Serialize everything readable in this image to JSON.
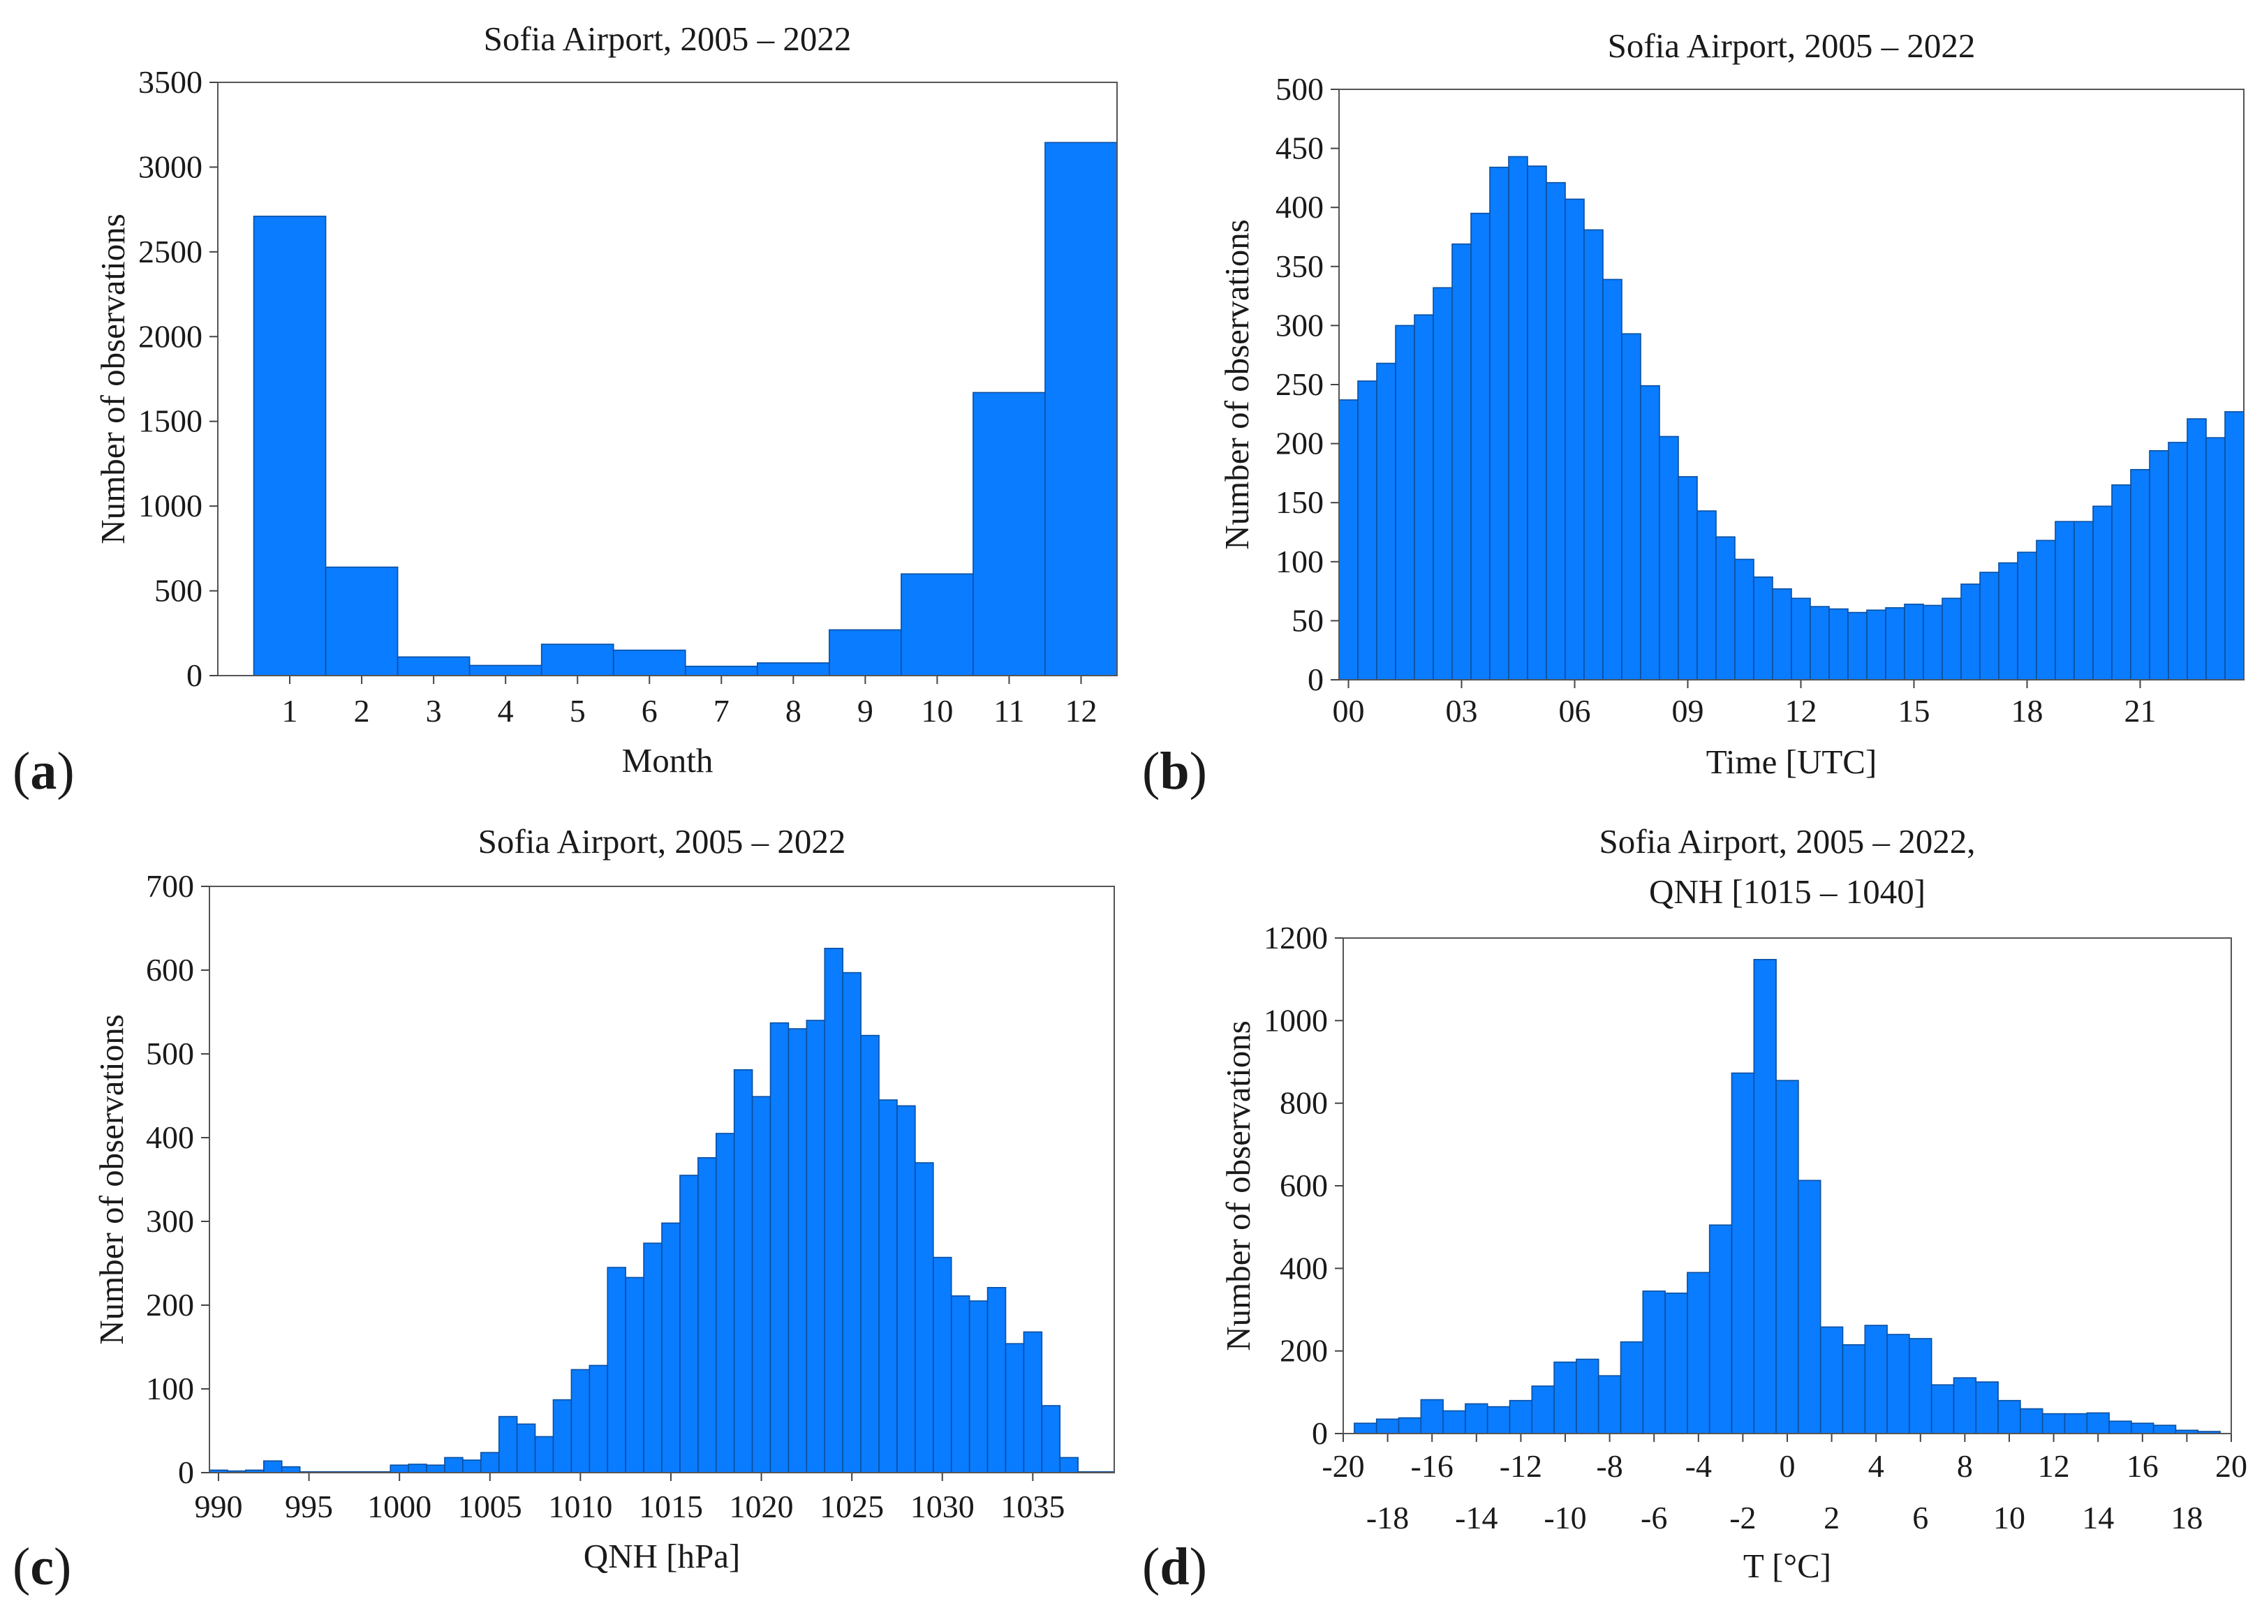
{
  "colors": {
    "bar": "#0a7cff",
    "bar_edge": "#0a4fa0",
    "frame": "#555555",
    "text": "#1a1a1a"
  },
  "chart_data": [
    {
      "id": "a",
      "type": "bar",
      "panel_label": "a",
      "title": [
        "Sofia Airport, 2005 – 2022"
      ],
      "xlabel": "Month",
      "ylabel": "Number of observations",
      "ylim": [
        0,
        3500
      ],
      "yticks": [
        0,
        500,
        1000,
        1500,
        2000,
        2500,
        3000,
        3500
      ],
      "categories": [
        "1",
        "2",
        "3",
        "4",
        "5",
        "6",
        "7",
        "8",
        "9",
        "10",
        "11",
        "12"
      ],
      "values": [
        2710,
        640,
        110,
        60,
        185,
        150,
        55,
        75,
        270,
        600,
        1670,
        3145
      ]
    },
    {
      "id": "b",
      "type": "bar",
      "panel_label": "b",
      "title": [
        "Sofia Airport, 2005 – 2022"
      ],
      "xlabel": "Time [UTC]",
      "ylabel": "Number of observations",
      "ylim": [
        0,
        500
      ],
      "yticks": [
        0,
        50,
        100,
        150,
        200,
        250,
        300,
        350,
        400,
        450,
        500
      ],
      "xlim": [
        -0.25,
        23.75
      ],
      "bin_width": 0.5,
      "bin_start": -0.25,
      "xticks": [
        {
          "value": 0,
          "label": "00"
        },
        {
          "value": 3,
          "label": "03"
        },
        {
          "value": 6,
          "label": "06"
        },
        {
          "value": 9,
          "label": "09"
        },
        {
          "value": 12,
          "label": "12"
        },
        {
          "value": 15,
          "label": "15"
        },
        {
          "value": 18,
          "label": "18"
        },
        {
          "value": 21,
          "label": "21"
        }
      ],
      "values": [
        237,
        253,
        268,
        300,
        309,
        332,
        369,
        395,
        434,
        443,
        435,
        421,
        407,
        381,
        339,
        293,
        249,
        206,
        172,
        143,
        121,
        102,
        87,
        77,
        69,
        62,
        60,
        57,
        59,
        61,
        64,
        63,
        69,
        81,
        91,
        99,
        108,
        118,
        134,
        134,
        147,
        165,
        178,
        194,
        201,
        221,
        205,
        227
      ]
    },
    {
      "id": "c",
      "type": "bar",
      "panel_label": "c",
      "title": [
        "Sofia Airport, 2005 – 2022"
      ],
      "xlabel": "QNH [hPa]",
      "ylabel": "Number of observations",
      "ylim": [
        0,
        700
      ],
      "yticks": [
        0,
        100,
        200,
        300,
        400,
        500,
        600,
        700
      ],
      "xlim": [
        989.5,
        1039.5
      ],
      "bin_width": 1,
      "bin_start": 989.5,
      "xticks": [
        {
          "value": 990,
          "label": "990"
        },
        {
          "value": 995,
          "label": "995"
        },
        {
          "value": 1000,
          "label": "1000"
        },
        {
          "value": 1005,
          "label": "1005"
        },
        {
          "value": 1010,
          "label": "1010"
        },
        {
          "value": 1015,
          "label": "1015"
        },
        {
          "value": 1020,
          "label": "1020"
        },
        {
          "value": 1025,
          "label": "1025"
        },
        {
          "value": 1030,
          "label": "1030"
        },
        {
          "value": 1035,
          "label": "1035"
        }
      ],
      "values": [
        3,
        2,
        3,
        14,
        7,
        1,
        1,
        1,
        1,
        1,
        9,
        10,
        9,
        18,
        15,
        24,
        67,
        58,
        43,
        87,
        123,
        128,
        245,
        233,
        274,
        298,
        355,
        376,
        405,
        481,
        449,
        537,
        530,
        540,
        626,
        597,
        522,
        445,
        438,
        370,
        257,
        211,
        205,
        221,
        154,
        168,
        80,
        18,
        1,
        1
      ]
    },
    {
      "id": "d",
      "type": "bar",
      "panel_label": "d",
      "title": [
        "Sofia Airport, 2005 – 2022,",
        "QNH [1015 – 1040]"
      ],
      "xlabel": "T [°C]",
      "ylabel": "Number of observations",
      "ylim": [
        0,
        1200
      ],
      "yticks": [
        0,
        200,
        400,
        600,
        800,
        1000,
        1200
      ],
      "xlim": [
        -20,
        20
      ],
      "bin_width": 1,
      "bin_start": -19.5,
      "xticks_upper": [
        {
          "value": -20,
          "label": "-20"
        },
        {
          "value": -16,
          "label": "-16"
        },
        {
          "value": -12,
          "label": "-12"
        },
        {
          "value": -8,
          "label": "-8"
        },
        {
          "value": -4,
          "label": "-4"
        },
        {
          "value": 0,
          "label": "0"
        },
        {
          "value": 4,
          "label": "4"
        },
        {
          "value": 8,
          "label": "8"
        },
        {
          "value": 12,
          "label": "12"
        },
        {
          "value": 16,
          "label": "16"
        },
        {
          "value": 20,
          "label": "20"
        }
      ],
      "xticks_lower": [
        {
          "value": -18,
          "label": "-18"
        },
        {
          "value": -14,
          "label": "-14"
        },
        {
          "value": -10,
          "label": "-10"
        },
        {
          "value": -6,
          "label": "-6"
        },
        {
          "value": -2,
          "label": "-2"
        },
        {
          "value": 2,
          "label": "2"
        },
        {
          "value": 6,
          "label": "6"
        },
        {
          "value": 10,
          "label": "10"
        },
        {
          "value": 14,
          "label": "14"
        },
        {
          "value": 18,
          "label": "18"
        }
      ],
      "values": [
        25,
        35,
        38,
        82,
        55,
        72,
        65,
        80,
        115,
        173,
        180,
        140,
        222,
        345,
        340,
        390,
        505,
        873,
        1148,
        855,
        613,
        258,
        215,
        262,
        240,
        230,
        118,
        135,
        125,
        80,
        60,
        48,
        48,
        50,
        30,
        25,
        20,
        8,
        5
      ]
    }
  ]
}
